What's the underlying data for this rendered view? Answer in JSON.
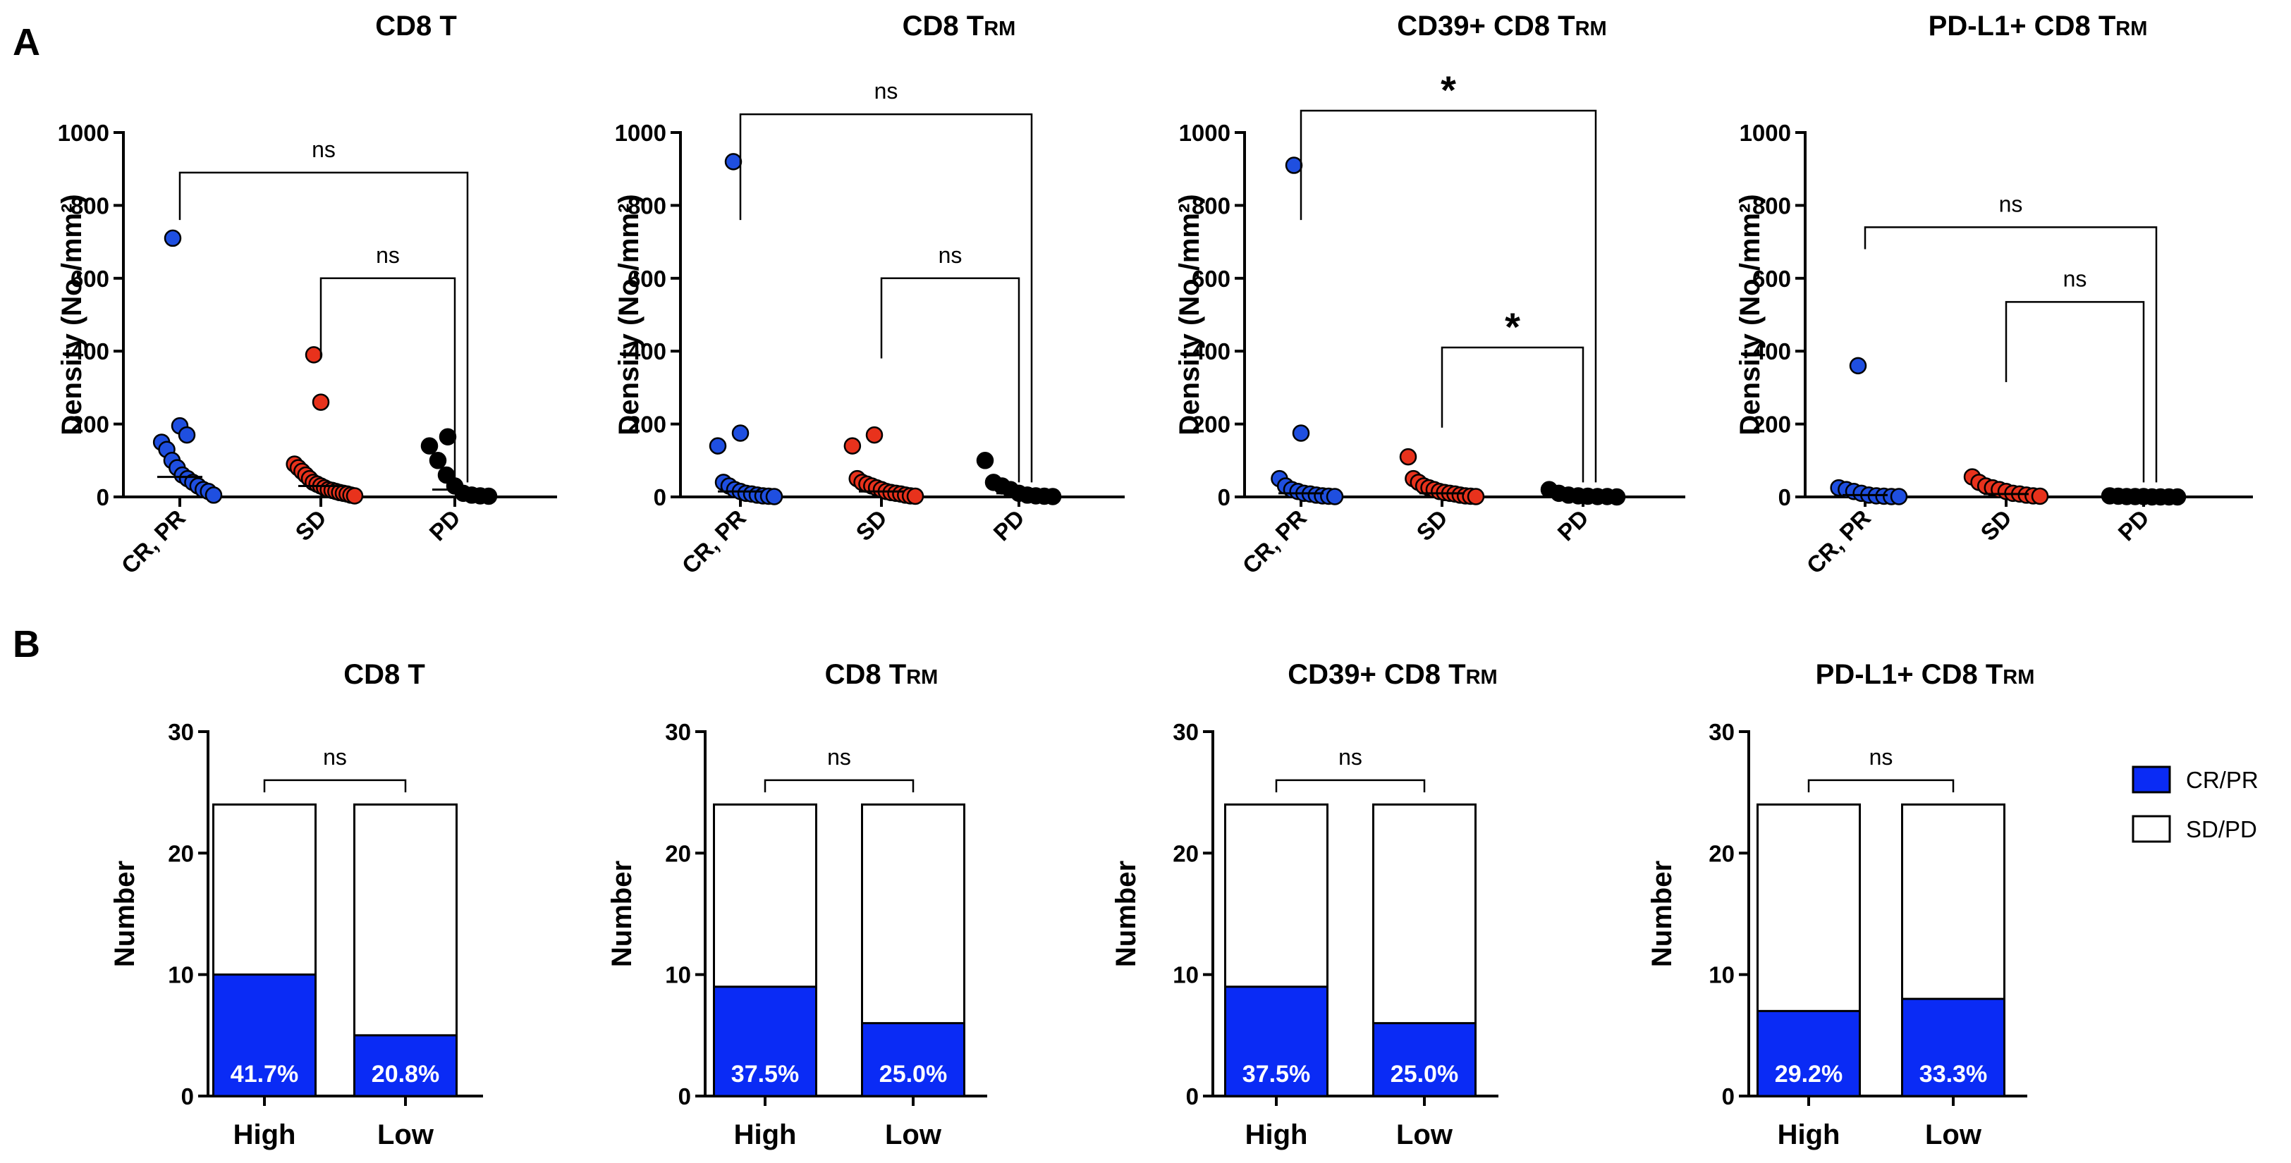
{
  "panel_labels": [
    "A",
    "B"
  ],
  "colors": {
    "crpr": "#1f4fe0",
    "sd": "#e8321c",
    "pd": "#000000",
    "bar_fill": "#0a2bf5",
    "axis": "#000000"
  },
  "chart_data": [
    {
      "id": "A1",
      "type": "scatter",
      "panel": "A",
      "title": "CD8 T",
      "title_sub": "",
      "ylabel": "Density (No./mm²)",
      "ylim": [
        0,
        1000
      ],
      "yticks": [
        0,
        200,
        400,
        600,
        800,
        1000
      ],
      "categories": [
        "CR, PR",
        "SD",
        "PD"
      ],
      "series": [
        {
          "name": "CR, PR",
          "color_key": "crpr",
          "median": 55,
          "values": [
            710,
            195,
            170,
            150,
            130,
            100,
            80,
            60,
            50,
            40,
            30,
            20,
            15,
            5
          ]
        },
        {
          "name": "SD",
          "color_key": "sd",
          "median": 30,
          "values": [
            390,
            260,
            90,
            80,
            70,
            60,
            50,
            40,
            35,
            30,
            25,
            20,
            18,
            15,
            12,
            10,
            8,
            5,
            3
          ]
        },
        {
          "name": "PD",
          "color_key": "pd",
          "median": 20,
          "values": [
            165,
            140,
            100,
            60,
            30,
            10,
            5,
            3,
            2
          ]
        }
      ],
      "comparisons": [
        {
          "from": 0,
          "to": 2,
          "label": "ns",
          "y": 890
        },
        {
          "from": 1,
          "to": 2,
          "label": "ns",
          "y": 600
        }
      ]
    },
    {
      "id": "A2",
      "type": "scatter",
      "panel": "A",
      "title": "CD8 T",
      "title_sub": "RM",
      "ylabel": "Density (No./mm²)",
      "ylim": [
        0,
        1000
      ],
      "yticks": [
        0,
        200,
        400,
        600,
        800,
        1000
      ],
      "categories": [
        "CR, PR",
        "SD",
        "PD"
      ],
      "series": [
        {
          "name": "CR, PR",
          "color_key": "crpr",
          "median": 15,
          "values": [
            920,
            175,
            140,
            40,
            30,
            20,
            15,
            10,
            8,
            5,
            3,
            2,
            1
          ]
        },
        {
          "name": "SD",
          "color_key": "sd",
          "median": 15,
          "values": [
            170,
            140,
            50,
            40,
            35,
            30,
            25,
            20,
            15,
            12,
            10,
            8,
            5,
            3,
            2
          ]
        },
        {
          "name": "PD",
          "color_key": "pd",
          "median": 10,
          "values": [
            100,
            40,
            30,
            20,
            10,
            5,
            3,
            2,
            1
          ]
        }
      ],
      "comparisons": [
        {
          "from": 0,
          "to": 2,
          "label": "ns",
          "y": 1050
        },
        {
          "from": 1,
          "to": 2,
          "label": "ns",
          "y": 600
        }
      ]
    },
    {
      "id": "A3",
      "type": "scatter",
      "panel": "A",
      "title": "CD39+ CD8 T",
      "title_sub": "RM",
      "ylabel": "Density (No./mm²)",
      "ylim": [
        0,
        1000
      ],
      "yticks": [
        0,
        200,
        400,
        600,
        800,
        1000
      ],
      "categories": [
        "CR, PR",
        "SD",
        "PD"
      ],
      "series": [
        {
          "name": "CR, PR",
          "color_key": "crpr",
          "median": 10,
          "values": [
            910,
            175,
            50,
            30,
            20,
            15,
            10,
            8,
            5,
            3,
            2,
            1
          ]
        },
        {
          "name": "SD",
          "color_key": "sd",
          "median": 10,
          "values": [
            110,
            50,
            40,
            30,
            25,
            20,
            15,
            12,
            10,
            8,
            5,
            3,
            2,
            1
          ]
        },
        {
          "name": "PD",
          "color_key": "pd",
          "median": 3,
          "values": [
            20,
            10,
            5,
            3,
            2,
            1,
            1,
            0
          ]
        }
      ],
      "comparisons": [
        {
          "from": 0,
          "to": 2,
          "label": "*",
          "y": 1060
        },
        {
          "from": 1,
          "to": 2,
          "label": "*",
          "y": 410
        }
      ]
    },
    {
      "id": "A4",
      "type": "scatter",
      "panel": "A",
      "title": "PD-L1+ CD8 T",
      "title_sub": "RM",
      "ylabel": "Density (No./mm²)",
      "ylim": [
        0,
        1000
      ],
      "yticks": [
        0,
        200,
        400,
        600,
        800,
        1000
      ],
      "categories": [
        "CR, PR",
        "SD",
        "PD"
      ],
      "series": [
        {
          "name": "CR, PR",
          "color_key": "crpr",
          "median": 5,
          "values": [
            360,
            25,
            20,
            15,
            10,
            5,
            3,
            2,
            1,
            1
          ]
        },
        {
          "name": "SD",
          "color_key": "sd",
          "median": 8,
          "values": [
            55,
            40,
            30,
            25,
            20,
            15,
            10,
            8,
            5,
            3,
            2
          ]
        },
        {
          "name": "PD",
          "color_key": "pd",
          "median": 1,
          "values": [
            3,
            2,
            1,
            1,
            1,
            0,
            0,
            0,
            0
          ]
        }
      ],
      "comparisons": [
        {
          "from": 0,
          "to": 2,
          "label": "ns",
          "y": 740
        },
        {
          "from": 1,
          "to": 2,
          "label": "ns",
          "y": 535
        }
      ]
    },
    {
      "id": "B1",
      "type": "bar",
      "stacked": true,
      "panel": "B",
      "title": "CD8 T",
      "title_sub": "",
      "ylabel": "Number",
      "ylim": [
        0,
        30
      ],
      "yticks": [
        0,
        10,
        20,
        30
      ],
      "categories": [
        "High",
        "Low"
      ],
      "series": [
        {
          "name": "CR/PR",
          "values": [
            10,
            5
          ]
        },
        {
          "name": "SD/PD",
          "values": [
            14,
            19
          ]
        }
      ],
      "percent_labels": [
        "41.7%",
        "20.8%"
      ],
      "comparisons": [
        {
          "from": 0,
          "to": 1,
          "label": "ns",
          "y": 26
        }
      ]
    },
    {
      "id": "B2",
      "type": "bar",
      "stacked": true,
      "panel": "B",
      "title": "CD8 T",
      "title_sub": "RM",
      "ylabel": "Number",
      "ylim": [
        0,
        30
      ],
      "yticks": [
        0,
        10,
        20,
        30
      ],
      "categories": [
        "High",
        "Low"
      ],
      "series": [
        {
          "name": "CR/PR",
          "values": [
            9,
            6
          ]
        },
        {
          "name": "SD/PD",
          "values": [
            15,
            18
          ]
        }
      ],
      "percent_labels": [
        "37.5%",
        "25.0%"
      ],
      "comparisons": [
        {
          "from": 0,
          "to": 1,
          "label": "ns",
          "y": 26
        }
      ]
    },
    {
      "id": "B3",
      "type": "bar",
      "stacked": true,
      "panel": "B",
      "title": "CD39+ CD8 T",
      "title_sub": "RM",
      "ylabel": "Number",
      "ylim": [
        0,
        30
      ],
      "yticks": [
        0,
        10,
        20,
        30
      ],
      "categories": [
        "High",
        "Low"
      ],
      "series": [
        {
          "name": "CR/PR",
          "values": [
            9,
            6
          ]
        },
        {
          "name": "SD/PD",
          "values": [
            15,
            18
          ]
        }
      ],
      "percent_labels": [
        "37.5%",
        "25.0%"
      ],
      "comparisons": [
        {
          "from": 0,
          "to": 1,
          "label": "ns",
          "y": 26
        }
      ]
    },
    {
      "id": "B4",
      "type": "bar",
      "stacked": true,
      "panel": "B",
      "title": "PD-L1+ CD8 T",
      "title_sub": "RM",
      "ylabel": "Number",
      "ylim": [
        0,
        30
      ],
      "yticks": [
        0,
        10,
        20,
        30
      ],
      "categories": [
        "High",
        "Low"
      ],
      "series": [
        {
          "name": "CR/PR",
          "values": [
            7,
            8
          ]
        },
        {
          "name": "SD/PD",
          "values": [
            17,
            16
          ]
        }
      ],
      "percent_labels": [
        "29.2%",
        "33.3%"
      ],
      "comparisons": [
        {
          "from": 0,
          "to": 1,
          "label": "ns",
          "y": 26
        }
      ]
    }
  ],
  "legend": {
    "placement": "right of panel B",
    "items": [
      {
        "label": "CR/PR",
        "color_key": "bar_fill"
      },
      {
        "label": "SD/PD",
        "color_key": "white"
      }
    ]
  }
}
